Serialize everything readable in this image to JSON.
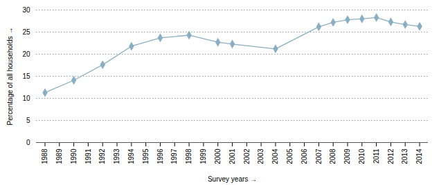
{
  "chart_data": {
    "type": "line",
    "x": [
      1988,
      1990,
      1992,
      1994,
      1996,
      1998,
      2000,
      2001,
      2004,
      2007,
      2008,
      2009,
      2010,
      2011,
      2012,
      2013,
      2014
    ],
    "values": [
      11.3,
      14.1,
      17.6,
      21.8,
      23.7,
      24.3,
      22.7,
      22.3,
      21.2,
      26.2,
      27.2,
      27.8,
      28.0,
      28.3,
      27.3,
      26.7,
      26.3
    ],
    "color": "#8aafc2",
    "marker": "diamond",
    "xlabel": "Survey years",
    "ylabel": "Percentage of all households",
    "xlim": [
      1987.4,
      2014.6
    ],
    "xticks": [
      1988,
      1989,
      1990,
      1991,
      1992,
      1993,
      1994,
      1995,
      1996,
      1997,
      1998,
      1999,
      2000,
      2001,
      2002,
      2003,
      2004,
      2005,
      2006,
      2007,
      2008,
      2009,
      2010,
      2011,
      2012,
      2013,
      2014
    ],
    "ylim": [
      0,
      30
    ],
    "yticks": [
      0,
      5,
      10,
      15,
      20,
      25,
      30
    ],
    "grid": true
  }
}
